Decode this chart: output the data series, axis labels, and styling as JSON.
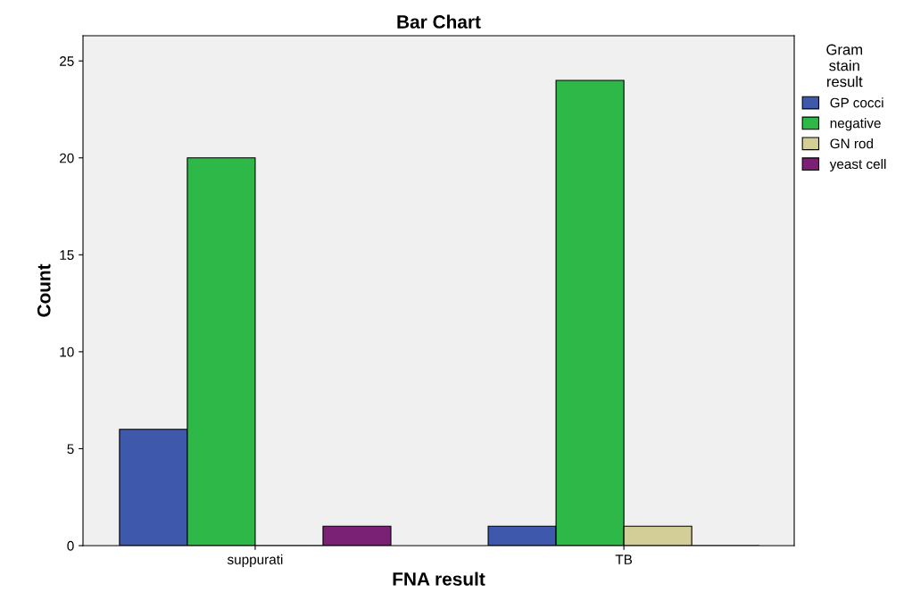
{
  "chart_data": {
    "type": "bar",
    "title": "Bar Chart",
    "xlabel": "FNA result",
    "ylabel": "Count",
    "categories": [
      "suppurati",
      "TB"
    ],
    "series": [
      {
        "name": "GP cocci",
        "color": "#3e58ac",
        "values": [
          6,
          1
        ]
      },
      {
        "name": "negative",
        "color": "#2eb848",
        "values": [
          20,
          24
        ]
      },
      {
        "name": "GN rod",
        "color": "#d3ce97",
        "values": [
          0,
          1
        ]
      },
      {
        "name": "yeast cell",
        "color": "#7a2175",
        "values": [
          1,
          0
        ]
      }
    ],
    "legend_title": "Gram\nstain\nresult",
    "legend": "top right",
    "ylim": [
      0,
      26.3
    ],
    "yticks": [
      0,
      5,
      10,
      15,
      20,
      25
    ],
    "grid": false
  }
}
